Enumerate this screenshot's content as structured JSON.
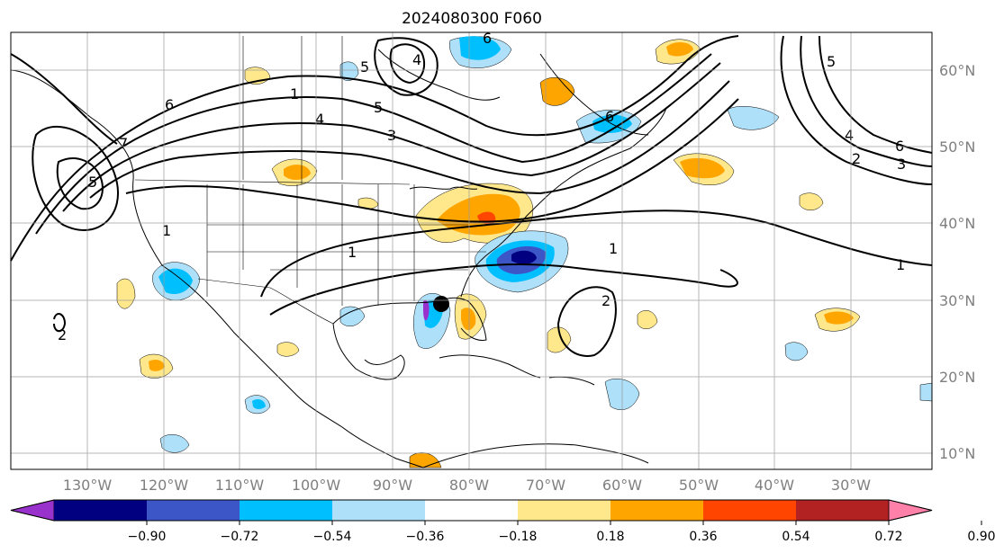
{
  "title": "2024080300 F060",
  "map": {
    "lon_labels": [
      "130°W",
      "120°W",
      "110°W",
      "100°W",
      "90°W",
      "80°W",
      "70°W",
      "60°W",
      "50°W",
      "40°W",
      "30°W"
    ],
    "lat_labels": [
      "60°N",
      "50°N",
      "40°N",
      "30°N",
      "20°N",
      "10°N"
    ],
    "contour_labels": [
      "1",
      "1",
      "1",
      "1",
      "2",
      "2",
      "2",
      "3",
      "3",
      "4",
      "4",
      "4",
      "5",
      "5",
      "5",
      "5",
      "6",
      "6",
      "6",
      "6",
      "7",
      "1"
    ],
    "marker": {
      "label": "storm-position-marker",
      "color": "#000000"
    },
    "grid": true,
    "coastlines": true
  },
  "colorbar": {
    "ticks": [
      "−0.90",
      "−0.72",
      "−0.54",
      "−0.36",
      "−0.18",
      "0.18",
      "0.36",
      "0.54",
      "0.72",
      "0.90"
    ],
    "colors": [
      "#9932cc",
      "#000080",
      "#3c56c8",
      "#00bfff",
      "#aee0fa",
      "#ffffff",
      "#ffe88c",
      "#ffa500",
      "#ff4500",
      "#b22222",
      "#ff80a8"
    ]
  }
}
